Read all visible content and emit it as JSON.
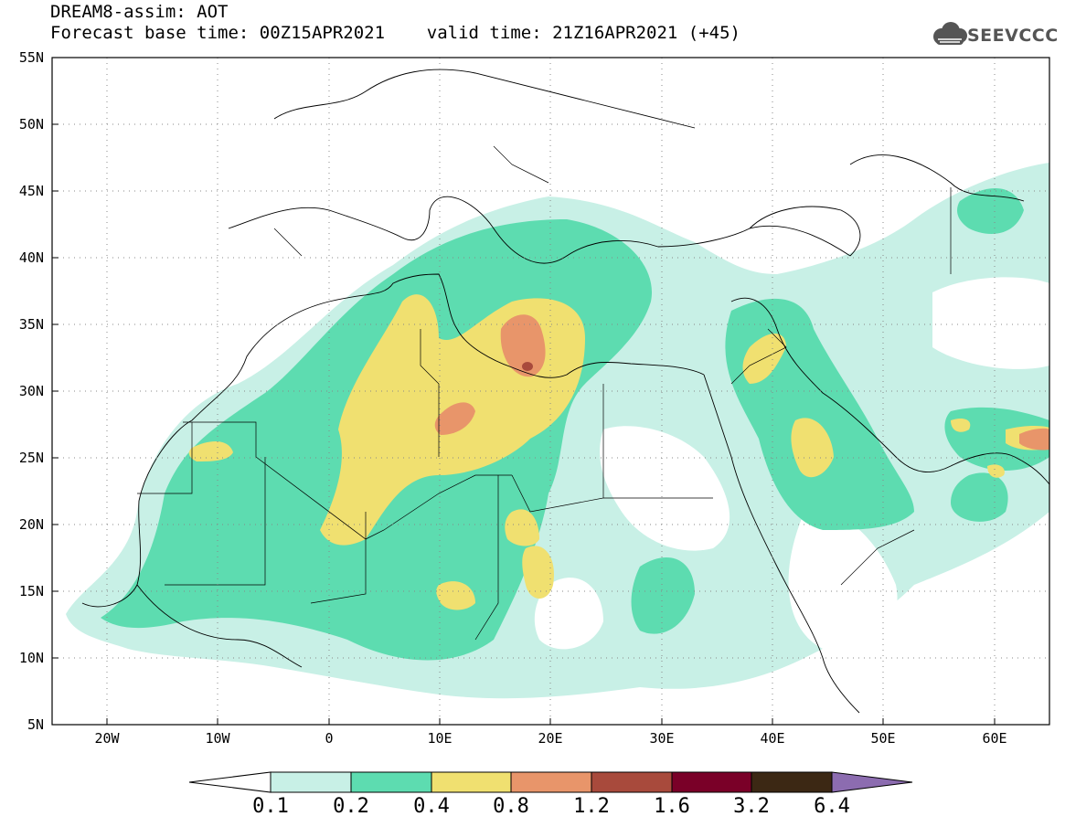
{
  "title": {
    "line1": "DREAM8-assim: AOT",
    "line2": "Forecast base time: 00Z15APR2021    valid time: 21Z16APR2021 (+45)"
  },
  "logo": {
    "text": "SEEVCCC"
  },
  "map": {
    "lon_range": [
      -25,
      65
    ],
    "lat_range": [
      5,
      55
    ],
    "lat_labels": [
      "55N",
      "50N",
      "45N",
      "40N",
      "35N",
      "30N",
      "25N",
      "20N",
      "15N",
      "10N",
      "5N"
    ],
    "lon_labels": [
      "20W",
      "10W",
      "0",
      "10E",
      "20E",
      "30E",
      "40E",
      "50E",
      "60E"
    ],
    "grid": "dotted"
  },
  "colorbar": {
    "labels": [
      "0.1",
      "0.2",
      "0.4",
      "0.8",
      "1.2",
      "1.6",
      "3.2",
      "6.4"
    ],
    "colors": [
      "#c8f0e6",
      "#5ddcb0",
      "#f0e070",
      "#e8956a",
      "#a84a3c",
      "#7a0028",
      "#3c2814",
      "#8c6cb0"
    ]
  }
}
